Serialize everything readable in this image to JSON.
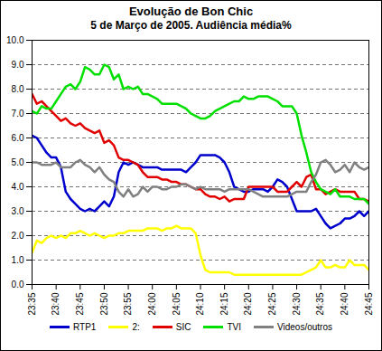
{
  "chart_data": {
    "type": "line",
    "title": "Evolução de Bon Chic",
    "subtitle": "5 de Março de 2005. Audiência média%",
    "x": [
      1415,
      1416,
      1417,
      1418,
      1419,
      1420,
      1421,
      1422,
      1423,
      1424,
      1425,
      1426,
      1427,
      1428,
      1429,
      1430,
      1431,
      1432,
      1433,
      1434,
      1435,
      1436,
      1437,
      1438,
      1439,
      1440,
      1441,
      1442,
      1443,
      1444,
      1445,
      1446,
      1447,
      1448,
      1449,
      1450,
      1451,
      1452,
      1453,
      1454,
      1455,
      1456,
      1457,
      1458,
      1459,
      1460,
      1461,
      1462,
      1463,
      1464,
      1465,
      1466,
      1467,
      1468,
      1469,
      1470,
      1471,
      1472,
      1473,
      1474,
      1475,
      1476,
      1477,
      1478,
      1479,
      1480,
      1481,
      1482,
      1483,
      1484,
      1485
    ],
    "xlim": [
      1415,
      1485
    ],
    "xticks": [
      {
        "value": 1415,
        "label": "23:35"
      },
      {
        "value": 1420,
        "label": "23:40"
      },
      {
        "value": 1425,
        "label": "23:45"
      },
      {
        "value": 1430,
        "label": "23:50"
      },
      {
        "value": 1435,
        "label": "23:55"
      },
      {
        "value": 1440,
        "label": "24:00"
      },
      {
        "value": 1445,
        "label": "24:05"
      },
      {
        "value": 1450,
        "label": "24:10"
      },
      {
        "value": 1455,
        "label": "24:15"
      },
      {
        "value": 1460,
        "label": "24:20"
      },
      {
        "value": 1465,
        "label": "24:25"
      },
      {
        "value": 1470,
        "label": "24:30"
      },
      {
        "value": 1475,
        "label": "24:35"
      },
      {
        "value": 1480,
        "label": "24:40"
      },
      {
        "value": 1485,
        "label": "24:45"
      }
    ],
    "ylim": [
      0,
      10
    ],
    "yticks": [
      {
        "value": 0,
        "label": "0.0"
      },
      {
        "value": 1,
        "label": "1.0"
      },
      {
        "value": 2,
        "label": "2.0"
      },
      {
        "value": 3,
        "label": "3.0"
      },
      {
        "value": 4,
        "label": "4.0"
      },
      {
        "value": 5,
        "label": "5.0"
      },
      {
        "value": 6,
        "label": "6.0"
      },
      {
        "value": 7,
        "label": "7.0"
      },
      {
        "value": 8,
        "label": "8.0"
      },
      {
        "value": 9,
        "label": "9.0"
      },
      {
        "value": 10,
        "label": "10.0"
      }
    ],
    "grid": true,
    "legend": "bottom",
    "series": [
      {
        "name": "RTP1",
        "color": "#0000cc",
        "values": [
          6.1,
          6.0,
          5.7,
          5.4,
          5.2,
          5.2,
          4.8,
          3.8,
          3.5,
          3.3,
          3.1,
          3.0,
          3.1,
          3.0,
          3.2,
          3.4,
          3.2,
          3.6,
          4.6,
          5.0,
          4.9,
          5.0,
          4.9,
          4.8,
          4.8,
          4.8,
          4.8,
          4.7,
          4.7,
          4.7,
          4.7,
          4.7,
          4.6,
          4.8,
          5.0,
          5.3,
          5.3,
          5.3,
          5.3,
          5.2,
          5.0,
          4.6,
          4.0,
          3.9,
          3.8,
          3.8,
          3.9,
          3.9,
          3.9,
          3.8,
          4.0,
          4.3,
          4.2,
          4.0,
          3.5,
          3.0,
          3.0,
          3.0,
          3.0,
          3.1,
          2.8,
          2.5,
          2.3,
          2.4,
          2.5,
          2.7,
          2.7,
          2.8,
          3.0,
          2.8,
          3.0
        ]
      },
      {
        "name": "2:",
        "color": "#ffff00",
        "values": [
          1.3,
          1.8,
          1.7,
          1.9,
          2.0,
          1.9,
          2.0,
          1.9,
          2.1,
          2.1,
          2.2,
          2.1,
          2.0,
          2.1,
          2.0,
          1.9,
          2.0,
          2.0,
          2.1,
          2.1,
          2.2,
          2.2,
          2.2,
          2.2,
          2.3,
          2.3,
          2.3,
          2.2,
          2.3,
          2.3,
          2.4,
          2.3,
          2.3,
          2.3,
          2.1,
          1.2,
          0.6,
          0.5,
          0.5,
          0.5,
          0.5,
          0.5,
          0.4,
          0.4,
          0.4,
          0.4,
          0.4,
          0.4,
          0.4,
          0.4,
          0.4,
          0.4,
          0.4,
          0.4,
          0.4,
          0.4,
          0.4,
          0.5,
          0.6,
          0.7,
          1.0,
          0.7,
          0.7,
          0.8,
          0.7,
          0.7,
          1.0,
          0.8,
          0.8,
          0.8,
          0.6
        ]
      },
      {
        "name": "SIC",
        "color": "#e00000",
        "values": [
          7.8,
          7.4,
          7.5,
          7.3,
          7.1,
          6.9,
          6.7,
          6.8,
          6.6,
          6.5,
          6.6,
          6.4,
          6.3,
          6.2,
          6.3,
          5.8,
          5.9,
          5.7,
          5.2,
          5.1,
          5.1,
          5.0,
          4.9,
          4.6,
          4.4,
          4.4,
          4.4,
          4.3,
          4.3,
          4.2,
          4.2,
          4.1,
          4.1,
          4.0,
          3.9,
          3.9,
          3.7,
          3.6,
          3.6,
          3.5,
          3.6,
          3.4,
          3.5,
          3.5,
          3.5,
          4.0,
          4.0,
          4.0,
          4.0,
          4.0,
          4.0,
          3.8,
          3.8,
          3.8,
          4.0,
          4.2,
          4.0,
          4.4,
          4.5,
          3.9,
          3.9,
          3.7,
          3.8,
          3.9,
          3.8,
          3.8,
          3.8,
          3.8,
          3.5,
          3.5,
          3.4
        ]
      },
      {
        "name": "TVI",
        "color": "#00e000",
        "values": [
          7.1,
          7.0,
          7.3,
          7.2,
          7.2,
          7.5,
          7.8,
          8.1,
          8.2,
          8.0,
          8.3,
          8.9,
          8.8,
          8.6,
          8.6,
          9.0,
          8.9,
          8.4,
          8.6,
          8.0,
          8.1,
          8.0,
          8.1,
          7.8,
          7.8,
          7.7,
          7.6,
          7.4,
          7.4,
          7.4,
          7.4,
          7.3,
          7.2,
          7.0,
          6.9,
          6.8,
          6.8,
          6.9,
          7.1,
          7.2,
          7.3,
          7.4,
          7.5,
          7.5,
          7.7,
          7.6,
          7.6,
          7.7,
          7.7,
          7.7,
          7.6,
          7.5,
          7.3,
          7.3,
          7.3,
          7.0,
          6.1,
          5.4,
          4.6,
          4.2,
          3.9,
          3.8,
          3.7,
          3.9,
          3.6,
          3.6,
          3.6,
          3.5,
          3.5,
          3.5,
          3.3
        ]
      },
      {
        "name": "Videos/outros",
        "color": "#808080",
        "values": [
          5.0,
          5.0,
          4.9,
          4.9,
          4.9,
          5.0,
          4.8,
          4.8,
          4.8,
          5.0,
          5.1,
          4.9,
          4.8,
          4.6,
          4.8,
          4.5,
          4.3,
          4.2,
          3.8,
          3.6,
          3.9,
          3.6,
          3.7,
          4.0,
          3.8,
          4.0,
          4.0,
          3.9,
          3.9,
          4.0,
          4.0,
          4.1,
          4.1,
          4.0,
          3.9,
          4.0,
          3.9,
          3.9,
          3.9,
          3.9,
          3.8,
          3.9,
          3.9,
          3.9,
          3.9,
          3.9,
          3.8,
          3.7,
          3.6,
          3.6,
          3.6,
          3.6,
          3.6,
          3.6,
          3.7,
          3.8,
          3.8,
          3.8,
          4.2,
          4.5,
          5.0,
          5.1,
          4.9,
          4.6,
          4.7,
          4.9,
          4.6,
          5.0,
          4.8,
          4.7,
          4.8
        ]
      }
    ]
  }
}
